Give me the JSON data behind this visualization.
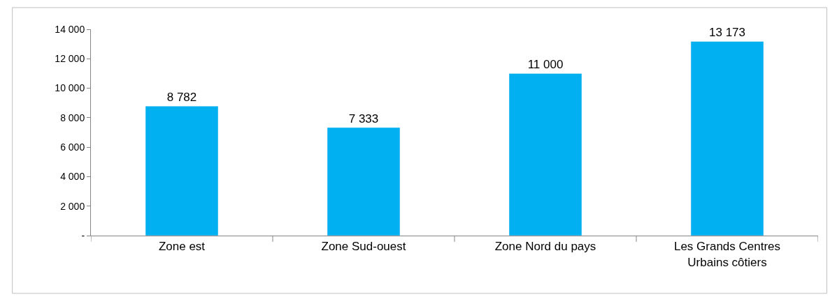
{
  "chart_data": {
    "type": "bar",
    "categories": [
      "Zone est",
      "Zone Sud-ouest",
      "Zone Nord du pays",
      "Les Grands Centres\nUrbains côtiers"
    ],
    "values": [
      8782,
      7333,
      11000,
      13173
    ],
    "value_labels": [
      "8 782",
      "7 333",
      "11 000",
      "13 173"
    ],
    "color": "#00b0f0",
    "ylim": [
      0,
      14000
    ],
    "yticks": [
      {
        "value": 0,
        "label": "-"
      },
      {
        "value": 2000,
        "label": "2 000"
      },
      {
        "value": 4000,
        "label": "4 000"
      },
      {
        "value": 6000,
        "label": "6 000"
      },
      {
        "value": 8000,
        "label": "8 000"
      },
      {
        "value": 10000,
        "label": "10 000"
      },
      {
        "value": 12000,
        "label": "12 000"
      },
      {
        "value": 14000,
        "label": "14 000"
      }
    ],
    "grid": false,
    "legend": false
  }
}
